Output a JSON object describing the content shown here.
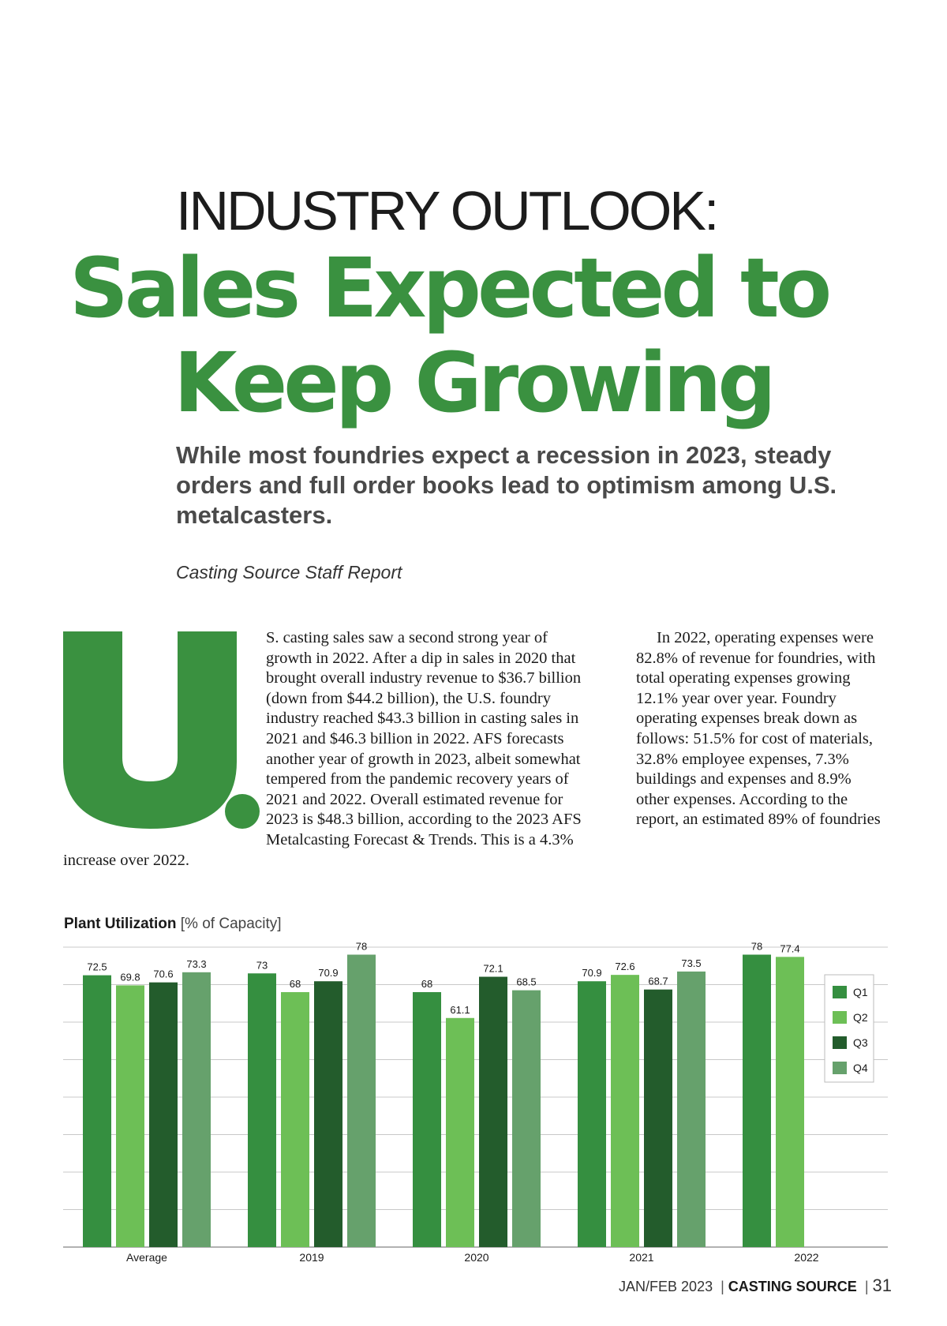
{
  "article": {
    "kicker": "INDUSTRY OUTLOOK:",
    "headline_line1": "Sales Expected to",
    "headline_line2": "Keep Growing",
    "deck": "While most foundries expect a recession in 2023, steady orders and full order books lead to optimism among U.S. metalcasters.",
    "byline": "Casting Source Staff Report",
    "dropcap": "U.",
    "col1_text": "S. casting sales saw a second strong year of growth in 2022. After a dip in sales in 2020 that brought overall industry revenue to $36.7 billion (down from $44.2 billion), the U.S. foundry industry reached $43.3 billion in casting sales in 2021 and $46.3 billion in 2022. AFS forecasts another year of growth in 2023, albeit somewhat tempered from the pandemic recovery years of 2021 and 2022. Overall estimated revenue for 2023 is $48.3 billion, according to the 2023 AFS Metalcasting Forecast & Trends. This is a 4.3% increase over 2022.",
    "col2_text": "In 2022, operating expenses were 82.8% of revenue for foundries, with total operating expenses growing 12.1% year over year. Foundry operating expenses break down as follows: 51.5% for cost of materials, 32.8% employee expenses, 7.3% buildings and expenses and 8.9% other expenses. According to the report, an estimated 89% of foundries"
  },
  "chart_data": {
    "type": "bar",
    "title": "Plant Utilization",
    "subtitle": "[% of Capacity]",
    "categories": [
      "Average",
      "2019",
      "2020",
      "2021",
      "2022"
    ],
    "series": [
      {
        "name": "Q1",
        "color": "#358f40",
        "values": [
          72.5,
          73,
          68,
          70.9,
          78
        ]
      },
      {
        "name": "Q2",
        "color": "#6dbf56",
        "values": [
          69.8,
          68,
          61.1,
          72.6,
          77.4
        ]
      },
      {
        "name": "Q3",
        "color": "#235c2c",
        "values": [
          70.6,
          70.9,
          72.1,
          68.7,
          null
        ]
      },
      {
        "name": "Q4",
        "color": "#66a16c",
        "values": [
          73.3,
          78,
          68.5,
          73.5,
          null
        ]
      }
    ],
    "value_labels": [
      [
        "72.5",
        "73",
        "68",
        "70.9",
        "78"
      ],
      [
        "69.8",
        "68",
        "61.1",
        "72.6",
        "77.4"
      ],
      [
        "70.6",
        "70.9",
        "72.1",
        "68.7",
        ""
      ],
      [
        "73.3",
        "78",
        "68.5",
        "73.5",
        ""
      ]
    ],
    "ylim": [
      0,
      80
    ],
    "grid": true,
    "legend": "top-right",
    "xlabel": "",
    "ylabel": ""
  },
  "footer": {
    "issue": "JAN/FEB 2023",
    "separator": "|",
    "publication": "CASTING SOURCE",
    "page_number": "31"
  }
}
